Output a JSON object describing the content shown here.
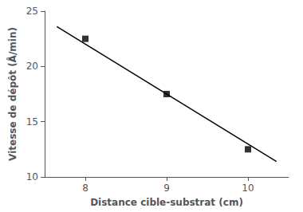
{
  "chart_data": {
    "type": "scatter",
    "xlabel": "Distance cible-substrat (cm)",
    "ylabel": "Vitesse de dépôt (Å/min)",
    "series": [
      {
        "type": "line",
        "x": [
          7.65,
          10.35
        ],
        "values": [
          23.6,
          11.4
        ],
        "color": "#000000",
        "line_style": "solid"
      },
      {
        "type": "scatter",
        "x": [
          8,
          9,
          10
        ],
        "values": [
          22.5,
          17.5,
          12.5
        ],
        "color": "#000000",
        "marker": "square"
      }
    ],
    "xlim": [
      7.5,
      10.5
    ],
    "ylim": [
      10,
      25
    ],
    "xticks": [
      8,
      9,
      10
    ],
    "yticks": [
      10,
      15,
      20,
      25
    ],
    "grid": false
  }
}
